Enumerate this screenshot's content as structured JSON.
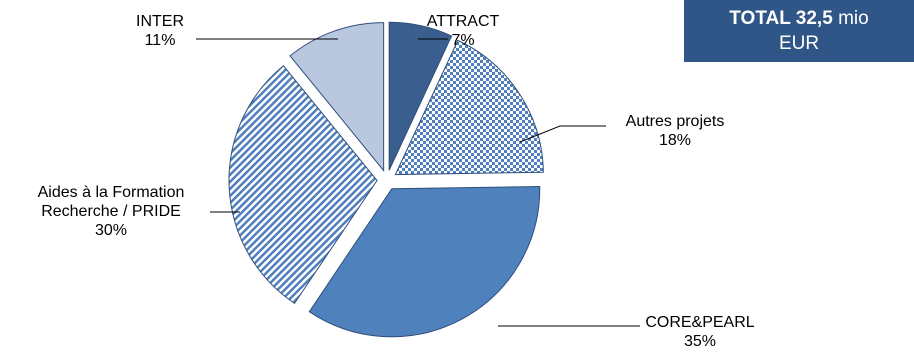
{
  "total_box": {
    "label_bold": "TOTAL 32,5",
    "label_rest": "mio",
    "label_unit": "EUR"
  },
  "colors": {
    "attract": "#3a5f8f",
    "autres": "#4f7fbf",
    "aides": "#4f7fbf",
    "core": "#4f81bd",
    "inter": "#b9c7df",
    "total_box_bg": "#2f5687"
  },
  "chart_data": {
    "type": "pie",
    "title": "",
    "slices": [
      {
        "label": "ATTRACT",
        "value": 7,
        "value_label": "7%",
        "fill": "solid-dark"
      },
      {
        "label": "Autres projets",
        "value": 18,
        "value_label": "18%",
        "fill": "dots"
      },
      {
        "label": "CORE&PEARL",
        "value": 35,
        "value_label": "35%",
        "fill": "solid"
      },
      {
        "label": "Aides à la Formation Recherche / PRIDE",
        "label_lines": [
          "Aides à la Formation",
          "Recherche / PRIDE"
        ],
        "value": 30,
        "value_label": "30%",
        "fill": "diagonal"
      },
      {
        "label": "INTER",
        "value": 11,
        "value_label": "11%",
        "fill": "solid-light"
      }
    ],
    "start_angle_deg": 0,
    "direction": "clockwise",
    "exploded": true
  }
}
